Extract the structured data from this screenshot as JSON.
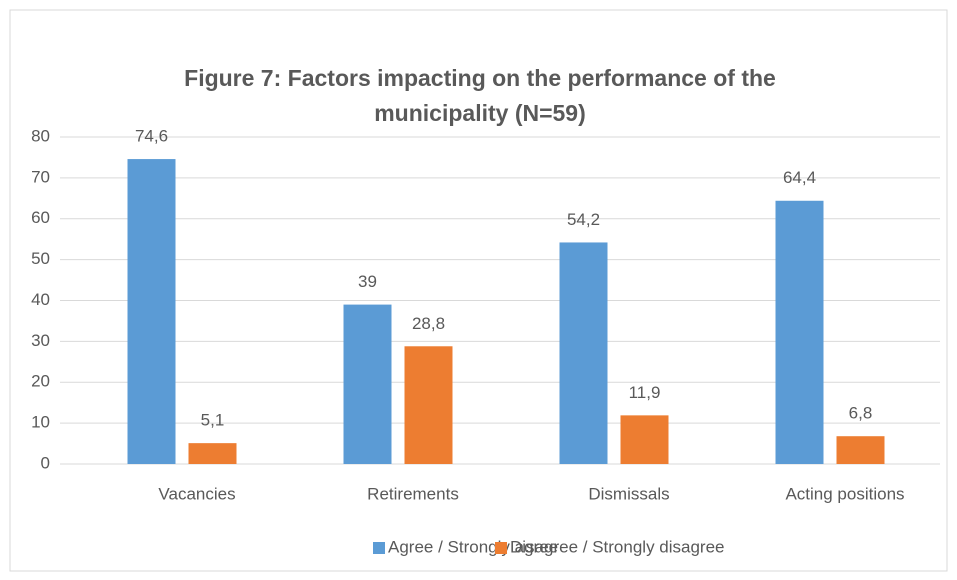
{
  "chart_data": {
    "type": "bar",
    "title": [
      "Figure 7: Factors impacting on the performance of the",
      "municipality (N=59)"
    ],
    "categories": [
      "Vacancies",
      "Retirements",
      "Dismissals",
      "Acting positions"
    ],
    "series": [
      {
        "name": "Agree / Strongly agree",
        "color": "#5b9bd5",
        "values": [
          74.6,
          39,
          54.2,
          64.4
        ],
        "value_labels": [
          "74,6",
          "39",
          "54,2",
          "64,4"
        ]
      },
      {
        "name": "Disagree / Strongly disagree",
        "color": "#ed7d31",
        "values": [
          5.1,
          28.8,
          11.9,
          6.8
        ],
        "value_labels": [
          "5,1",
          "28,8",
          "11,9",
          "6,8"
        ]
      }
    ],
    "ylim": [
      0,
      80
    ],
    "yticks": [
      0,
      10,
      20,
      30,
      40,
      50,
      60,
      70,
      80
    ],
    "grid": true,
    "legend": "bottom"
  }
}
